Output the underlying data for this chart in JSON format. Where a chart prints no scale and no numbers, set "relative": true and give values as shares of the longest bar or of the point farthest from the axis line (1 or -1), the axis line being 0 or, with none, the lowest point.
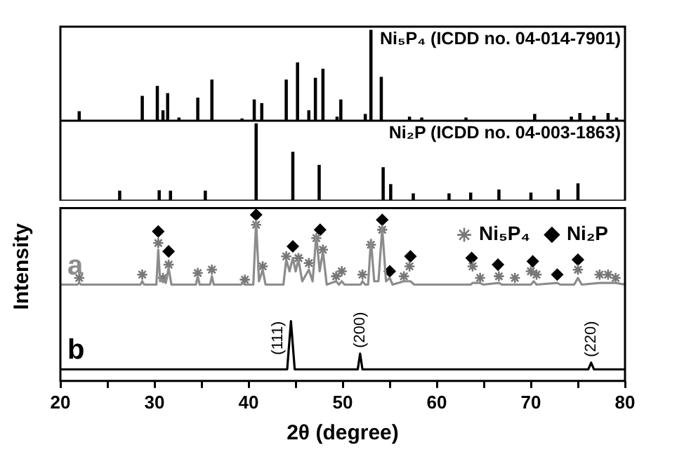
{
  "chart_data": [
    {
      "type": "bar",
      "title": "Ni₅P₄ (ICDD no. 04-014-7901)",
      "relative": true,
      "xlim": [
        20,
        80
      ],
      "tick_labels": false,
      "color": "#000000",
      "x": [
        22.0,
        28.7,
        30.3,
        30.9,
        31.4,
        32.6,
        34.6,
        36.1,
        39.3,
        40.6,
        41.4,
        44.0,
        45.2,
        46.4,
        47.1,
        47.9,
        49.4,
        49.8,
        52.4,
        53.0,
        54.1,
        57.1,
        58.4,
        63.1,
        70.4,
        74.3,
        75.2,
        76.7,
        78.2,
        79.1
      ],
      "values": [
        0.1,
        0.27,
        0.38,
        0.11,
        0.3,
        0.03,
        0.25,
        0.45,
        0.02,
        0.23,
        0.19,
        0.45,
        0.64,
        0.11,
        0.47,
        0.57,
        0.04,
        0.23,
        0.07,
        1.0,
        0.48,
        0.04,
        0.03,
        0.03,
        0.07,
        0.04,
        0.08,
        0.05,
        0.08,
        0.03
      ]
    },
    {
      "type": "bar",
      "title": "Ni₂P (ICDD no. 04-003-1863)",
      "relative": true,
      "xlim": [
        20,
        80
      ],
      "tick_labels": false,
      "color": "#000000",
      "x": [
        26.3,
        30.5,
        31.7,
        35.4,
        40.8,
        44.7,
        47.5,
        54.3,
        55.1,
        57.5,
        61.3,
        63.6,
        66.6,
        70.0,
        72.9,
        75.0
      ],
      "values": [
        0.125,
        0.13,
        0.125,
        0.125,
        1.0,
        0.63,
        0.46,
        0.43,
        0.21,
        0.09,
        0.09,
        0.1,
        0.14,
        0.1,
        0.14,
        0.22
      ]
    },
    {
      "type": "line",
      "xlabel": "2θ (degree)",
      "ylabel": "Intensity",
      "relative": true,
      "xlim": [
        20,
        80
      ],
      "tick_labels": "x",
      "legend": "top right",
      "xticks": [
        20,
        {
          "value": 25,
          "label": null
        },
        30,
        {
          "value": 35,
          "label": null
        },
        40,
        {
          "value": 45,
          "label": null
        },
        50,
        {
          "value": 55,
          "label": null
        },
        60,
        {
          "value": 65,
          "label": null
        },
        70,
        {
          "value": 75,
          "label": null
        },
        80
      ],
      "series": [
        {
          "name": "a",
          "color": "#8c8c8c",
          "x": [
            20,
            21.8,
            22.0,
            22.2,
            28.5,
            28.7,
            28.9,
            30.2,
            30.4,
            30.6,
            30.9,
            31.2,
            31.5,
            31.8,
            34.4,
            34.6,
            34.8,
            35.9,
            36.1,
            36.3,
            39.2,
            39.4,
            39.6,
            40.5,
            40.8,
            41.1,
            41.5,
            41.8,
            43.7,
            44.0,
            44.35,
            44.7,
            45.0,
            45.3,
            45.7,
            46.4,
            46.8,
            47.2,
            47.55,
            47.9,
            48.3,
            49.3,
            49.6,
            49.9,
            50.2,
            51.9,
            52.1,
            52.4,
            52.7,
            53.0,
            53.35,
            53.8,
            54.2,
            54.6,
            55.0,
            55.3,
            56.5,
            57.2,
            57.6,
            63.6,
            63.8,
            64.6,
            64.9,
            66.6,
            66.9,
            70.0,
            70.3,
            70.6,
            72.8,
            73.1,
            74.6,
            75.0,
            75.4,
            77.3,
            78.2,
            79.0,
            80
          ],
          "values": [
            0.58,
            0.58,
            0.59,
            0.58,
            0.58,
            0.6,
            0.58,
            0.58,
            0.79,
            0.6,
            0.61,
            0.59,
            0.68,
            0.58,
            0.58,
            0.63,
            0.58,
            0.58,
            0.63,
            0.58,
            0.58,
            0.59,
            0.58,
            0.58,
            0.96,
            0.6,
            0.67,
            0.58,
            0.58,
            0.73,
            0.66,
            0.74,
            0.66,
            0.73,
            0.6,
            0.67,
            0.6,
            0.88,
            0.66,
            0.78,
            0.58,
            0.6,
            0.58,
            0.6,
            0.58,
            0.58,
            0.6,
            0.58,
            0.58,
            0.85,
            0.6,
            0.6,
            0.92,
            0.6,
            0.62,
            0.58,
            0.6,
            0.6,
            0.58,
            0.58,
            0.59,
            0.59,
            0.58,
            0.59,
            0.58,
            0.58,
            0.6,
            0.58,
            0.59,
            0.58,
            0.58,
            0.62,
            0.58,
            0.59,
            0.59,
            0.59,
            0.58
          ]
        },
        {
          "name": "b",
          "color": "#000000",
          "x": [
            20,
            44.1,
            44.5,
            44.9,
            51.6,
            51.85,
            52.1,
            76.1,
            76.4,
            76.7,
            80
          ],
          "values": [
            0.07,
            0.07,
            0.36,
            0.07,
            0.07,
            0.165,
            0.07,
            0.07,
            0.11,
            0.07,
            0.07
          ]
        },
        {
          "name": "Ni₅P₄",
          "type": "scatter",
          "marker": "cross",
          "color": "#777777",
          "x": [
            22.0,
            28.7,
            30.4,
            30.9,
            31.5,
            34.6,
            36.1,
            39.6,
            40.8,
            41.5,
            44.0,
            45.3,
            46.4,
            47.2,
            47.9,
            49.3,
            49.9,
            52.1,
            53.0,
            54.2,
            56.5,
            57.1,
            63.8,
            64.6,
            66.6,
            68.3,
            70.0,
            70.6,
            75.0,
            77.3,
            78.2,
            79.0
          ],
          "values": [
            0.62,
            0.64,
            0.83,
            0.62,
            0.7,
            0.65,
            0.67,
            0.61,
            0.94,
            0.69,
            0.75,
            0.74,
            0.71,
            0.86,
            0.79,
            0.63,
            0.66,
            0.64,
            0.82,
            0.91,
            0.63,
            0.69,
            0.69,
            0.62,
            0.63,
            0.62,
            0.66,
            0.64,
            0.67,
            0.64,
            0.64,
            0.62
          ]
        },
        {
          "name": "Ni₂P",
          "type": "scatter",
          "marker": "diamond",
          "color": "#000000",
          "x": [
            30.4,
            31.5,
            40.8,
            44.7,
            47.6,
            54.2,
            55.0,
            57.2,
            63.7,
            66.5,
            70.2,
            72.8,
            75.0
          ],
          "values": [
            0.9,
            0.78,
            1.0,
            0.81,
            0.91,
            0.97,
            0.66,
            0.75,
            0.74,
            0.7,
            0.72,
            0.64,
            0.73
          ]
        }
      ],
      "annotations": [
        "(111)",
        "(200)",
        "(220)"
      ]
    }
  ]
}
